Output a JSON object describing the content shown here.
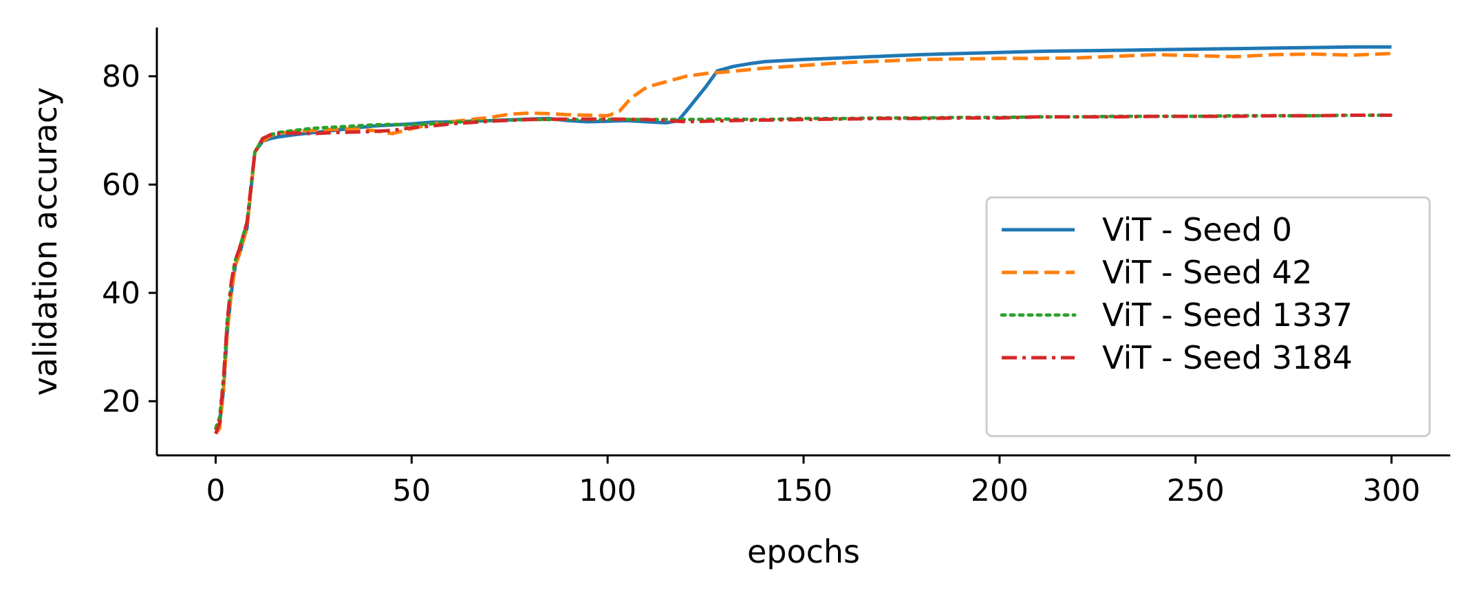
{
  "chart_data": {
    "type": "line",
    "title": "",
    "xlabel": "epochs",
    "ylabel": "validation accuracy",
    "xlim": [
      -15,
      315
    ],
    "ylim": [
      10,
      89
    ],
    "xticks": [
      0,
      50,
      100,
      150,
      200,
      250,
      300
    ],
    "yticks": [
      20,
      40,
      60,
      80
    ],
    "grid": false,
    "legend_position": "lower-right",
    "series": [
      {
        "name": "ViT - Seed 0",
        "color": "#1f77b4",
        "style": "solid",
        "x": [
          0,
          1,
          2,
          3,
          4,
          5,
          6,
          8,
          10,
          12,
          14,
          16,
          20,
          25,
          30,
          40,
          50,
          55,
          60,
          70,
          80,
          85,
          90,
          95,
          100,
          105,
          110,
          115,
          118,
          120,
          125,
          128,
          132,
          136,
          140,
          150,
          160,
          170,
          180,
          190,
          200,
          210,
          220,
          230,
          240,
          250,
          260,
          270,
          280,
          290,
          300
        ],
        "y": [
          15,
          16,
          22,
          33,
          40,
          45,
          47,
          52,
          66,
          68,
          68.5,
          68.8,
          69.2,
          69.6,
          70,
          70.8,
          71.2,
          71.5,
          71.6,
          71.8,
          72.1,
          72.2,
          71.8,
          71.6,
          71.7,
          71.8,
          71.6,
          71.4,
          71.8,
          73.5,
          78,
          81,
          81.8,
          82.3,
          82.7,
          83.1,
          83.4,
          83.7,
          84,
          84.2,
          84.4,
          84.6,
          84.7,
          84.8,
          84.9,
          85,
          85.1,
          85.2,
          85.3,
          85.4,
          85.4
        ]
      },
      {
        "name": "ViT - Seed 42",
        "color": "#ff7f0e",
        "style": "dashed",
        "x": [
          0,
          1,
          2,
          3,
          4,
          5,
          6,
          8,
          10,
          12,
          14,
          16,
          20,
          25,
          30,
          35,
          40,
          45,
          50,
          55,
          60,
          65,
          70,
          75,
          80,
          85,
          90,
          95,
          100,
          103,
          106,
          110,
          115,
          120,
          125,
          130,
          140,
          150,
          160,
          170,
          180,
          190,
          200,
          210,
          220,
          230,
          240,
          250,
          260,
          270,
          280,
          290,
          300
        ],
        "y": [
          14,
          15,
          22,
          33,
          40,
          45,
          47,
          52,
          66,
          68,
          69,
          69.5,
          69.8,
          70,
          70.2,
          70.3,
          70,
          69.4,
          70.3,
          71.2,
          71.6,
          72,
          72.4,
          73,
          73.2,
          73.1,
          72.9,
          72.8,
          72.7,
          73.5,
          76,
          78,
          79,
          80,
          80.5,
          80.8,
          81.5,
          82,
          82.5,
          82.8,
          83.1,
          83.2,
          83.3,
          83.3,
          83.4,
          83.7,
          84,
          83.8,
          83.6,
          84,
          84.1,
          83.9,
          84.2
        ]
      },
      {
        "name": "ViT - Seed 1337",
        "color": "#2ca02c",
        "style": "dotted",
        "x": [
          0,
          1,
          2,
          3,
          4,
          5,
          6,
          8,
          10,
          12,
          14,
          16,
          20,
          25,
          30,
          35,
          40,
          45,
          50,
          60,
          70,
          80,
          90,
          100,
          110,
          120,
          130,
          140,
          150,
          160,
          170,
          180,
          190,
          200,
          210,
          220,
          230,
          240,
          250,
          260,
          270,
          280,
          290,
          300
        ],
        "y": [
          15,
          17,
          24,
          35,
          42,
          46,
          48,
          53,
          66,
          68.5,
          69.2,
          69.6,
          70,
          70.4,
          70.6,
          70.8,
          71,
          71.1,
          71,
          71.5,
          71.8,
          72,
          72,
          72,
          72,
          72,
          72.1,
          72,
          72.2,
          72.2,
          72.3,
          72.3,
          72.4,
          72.4,
          72.5,
          72.5,
          72.6,
          72.6,
          72.6,
          72.7,
          72.7,
          72.7,
          72.8,
          72.8
        ]
      },
      {
        "name": "ViT - Seed 3184",
        "color": "#d62728",
        "style": "dashdot",
        "x": [
          0,
          1,
          2,
          3,
          4,
          5,
          6,
          8,
          10,
          12,
          14,
          16,
          20,
          25,
          30,
          35,
          40,
          45,
          50,
          55,
          60,
          70,
          80,
          90,
          100,
          110,
          120,
          130,
          140,
          150,
          160,
          170,
          180,
          190,
          200,
          210,
          220,
          230,
          240,
          250,
          260,
          270,
          280,
          290,
          300
        ],
        "y": [
          14,
          16,
          24,
          35,
          42,
          46,
          48,
          53,
          66,
          68.5,
          69.2,
          69.4,
          69.5,
          69.4,
          69.6,
          69.7,
          69.8,
          70,
          70.5,
          70.8,
          71.2,
          71.7,
          72,
          72.1,
          72.1,
          72,
          71.6,
          71.8,
          71.9,
          72,
          72.1,
          72.2,
          72.2,
          72.3,
          72.3,
          72.5,
          72.5,
          72.5,
          72.6,
          72.6,
          72.6,
          72.7,
          72.7,
          72.8,
          72.8
        ]
      }
    ]
  }
}
